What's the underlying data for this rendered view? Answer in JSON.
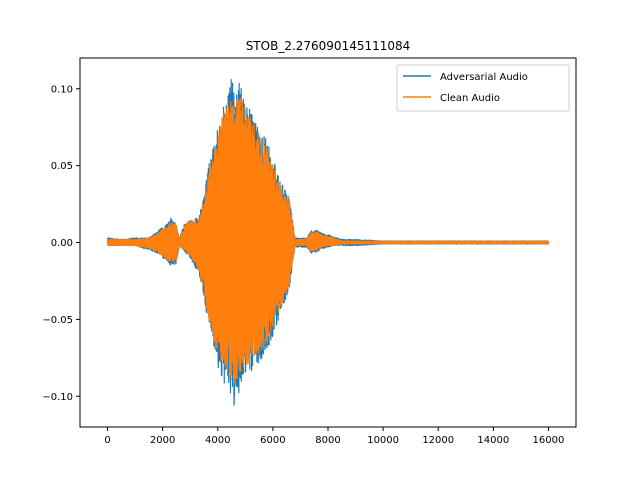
{
  "chart_data": {
    "type": "line",
    "title": "STOB_2.276090145111084",
    "xlabel": "",
    "ylabel": "",
    "xlim": [
      -1000,
      17000
    ],
    "ylim": [
      -0.12,
      0.12
    ],
    "x_ticks": [
      0,
      2000,
      4000,
      6000,
      8000,
      10000,
      12000,
      14000,
      16000
    ],
    "x_tick_labels": [
      "0",
      "2000",
      "4000",
      "6000",
      "8000",
      "10000",
      "12000",
      "14000",
      "16000"
    ],
    "y_ticks": [
      -0.1,
      -0.05,
      0.0,
      0.05,
      0.1
    ],
    "y_tick_labels": [
      "−0.10",
      "−0.05",
      "0.00",
      "0.05",
      "0.10"
    ],
    "grid": false,
    "legend_position": "upper right",
    "num_samples": 16000,
    "series": [
      {
        "name": "Adversarial Audio",
        "color": "#1f77b4",
        "envelope": {
          "x": [
            0,
            500,
            1000,
            1500,
            1800,
            2000,
            2200,
            2300,
            2500,
            2600,
            2800,
            3000,
            3300,
            3500,
            3600,
            3800,
            4000,
            4200,
            4400,
            4500,
            4600,
            4800,
            5000,
            5200,
            5400,
            5600,
            5800,
            6000,
            6200,
            6400,
            6600,
            6800,
            6900,
            7200,
            7400,
            7600,
            7800,
            8000,
            8200,
            8500,
            9000,
            10000,
            12000,
            14000,
            16000
          ],
          "max": [
            0.003,
            0.002,
            0.003,
            0.003,
            0.007,
            0.01,
            0.013,
            0.016,
            0.012,
            0.003,
            0.013,
            0.015,
            0.016,
            0.03,
            0.045,
            0.06,
            0.075,
            0.09,
            0.097,
            0.111,
            0.095,
            0.105,
            0.095,
            0.085,
            0.08,
            0.075,
            0.065,
            0.055,
            0.045,
            0.035,
            0.03,
            0.003,
            0.003,
            0.003,
            0.008,
            0.008,
            0.006,
            0.005,
            0.004,
            0.002,
            0.002,
            0.001,
            0.001,
            0.001,
            0.001
          ],
          "min": [
            -0.002,
            -0.002,
            -0.002,
            -0.005,
            -0.007,
            -0.01,
            -0.013,
            -0.015,
            -0.014,
            -0.002,
            -0.006,
            -0.01,
            -0.02,
            -0.035,
            -0.05,
            -0.065,
            -0.082,
            -0.09,
            -0.1,
            -0.103,
            -0.108,
            -0.095,
            -0.088,
            -0.085,
            -0.08,
            -0.075,
            -0.07,
            -0.06,
            -0.05,
            -0.04,
            -0.03,
            -0.003,
            -0.003,
            -0.003,
            -0.007,
            -0.006,
            -0.004,
            -0.003,
            -0.002,
            -0.002,
            -0.002,
            -0.001,
            -0.001,
            -0.001,
            -0.001
          ]
        }
      },
      {
        "name": "Clean Audio",
        "color": "#ff7f0e",
        "envelope": {
          "x": [
            0,
            500,
            1000,
            1500,
            1800,
            2000,
            2200,
            2300,
            2500,
            2600,
            2800,
            3000,
            3300,
            3500,
            3600,
            3800,
            4000,
            4200,
            4400,
            4500,
            4600,
            4800,
            5000,
            5200,
            5400,
            5600,
            5800,
            6000,
            6200,
            6400,
            6600,
            6800,
            6900,
            7200,
            7400,
            7600,
            7800,
            8000,
            8200,
            8500,
            9000,
            10000,
            12000,
            14000,
            16000
          ],
          "max": [
            0.002,
            0.002,
            0.002,
            0.003,
            0.006,
            0.009,
            0.012,
            0.014,
            0.011,
            0.002,
            0.012,
            0.014,
            0.015,
            0.028,
            0.042,
            0.058,
            0.072,
            0.086,
            0.09,
            0.098,
            0.09,
            0.096,
            0.088,
            0.08,
            0.074,
            0.068,
            0.06,
            0.05,
            0.042,
            0.033,
            0.028,
            0.002,
            0.002,
            0.002,
            0.007,
            0.007,
            0.005,
            0.004,
            0.003,
            0.001,
            0.001,
            0.0008,
            0.0008,
            0.0008,
            0.0008
          ],
          "min": [
            -0.002,
            -0.002,
            -0.002,
            -0.004,
            -0.006,
            -0.009,
            -0.012,
            -0.013,
            -0.012,
            -0.002,
            -0.005,
            -0.009,
            -0.018,
            -0.032,
            -0.046,
            -0.06,
            -0.075,
            -0.082,
            -0.09,
            -0.088,
            -0.092,
            -0.085,
            -0.08,
            -0.078,
            -0.074,
            -0.07,
            -0.064,
            -0.055,
            -0.046,
            -0.037,
            -0.028,
            -0.002,
            -0.002,
            -0.002,
            -0.006,
            -0.005,
            -0.003,
            -0.002,
            -0.002,
            -0.001,
            -0.001,
            -0.0008,
            -0.0008,
            -0.0008,
            -0.0008
          ]
        }
      }
    ]
  }
}
